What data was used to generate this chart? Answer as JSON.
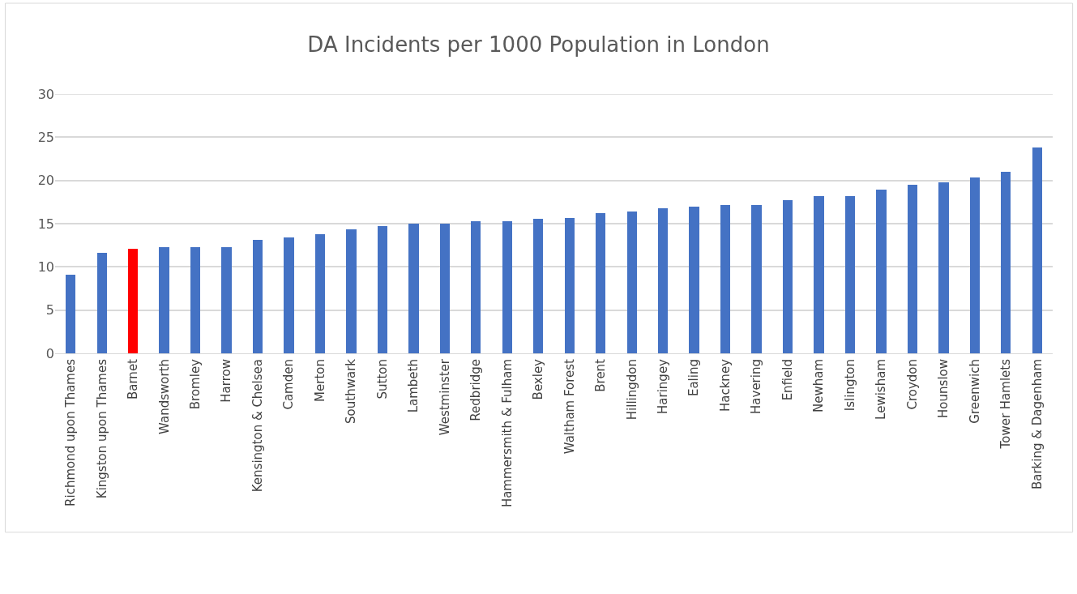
{
  "chart_data": {
    "type": "bar",
    "title": "DA Incidents per 1000 Population in London",
    "categories": [
      "Richmond upon Thames",
      "Kingston upon Thames",
      "Barnet",
      "Wandsworth",
      "Bromley",
      "Harrow",
      "Kensington & Chelsea",
      "Camden",
      "Merton",
      "Southwark",
      "Sutton",
      "Lambeth",
      "Westminster",
      "Redbridge",
      "Hammersmith & Fulham",
      "Bexley",
      "Waltham Forest",
      "Brent",
      "Hillingdon",
      "Haringey",
      "Ealing",
      "Hackney",
      "Havering",
      "Enfield",
      "Newham",
      "Islington",
      "Lewisham",
      "Croydon",
      "Hounslow",
      "Greenwich",
      "Tower Hamlets",
      "Barking & Dagenham"
    ],
    "values": [
      9.1,
      11.6,
      12.1,
      12.3,
      12.3,
      12.3,
      13.1,
      13.4,
      13.8,
      14.3,
      14.7,
      15.0,
      15.0,
      15.3,
      15.3,
      15.6,
      15.7,
      16.2,
      16.4,
      16.8,
      17.0,
      17.2,
      17.2,
      17.7,
      18.2,
      18.2,
      18.9,
      19.5,
      19.8,
      20.3,
      21.0,
      23.8
    ],
    "colors": [
      "#4472c4",
      "#4472c4",
      "#ff0000",
      "#4472c4",
      "#4472c4",
      "#4472c4",
      "#4472c4",
      "#4472c4",
      "#4472c4",
      "#4472c4",
      "#4472c4",
      "#4472c4",
      "#4472c4",
      "#4472c4",
      "#4472c4",
      "#4472c4",
      "#4472c4",
      "#4472c4",
      "#4472c4",
      "#4472c4",
      "#4472c4",
      "#4472c4",
      "#4472c4",
      "#4472c4",
      "#4472c4",
      "#4472c4",
      "#4472c4",
      "#4472c4",
      "#4472c4",
      "#4472c4",
      "#4472c4",
      "#4472c4"
    ],
    "ylim": [
      0,
      30
    ],
    "yticks": [
      0,
      5,
      10,
      15,
      20,
      25,
      30
    ],
    "grid": "y"
  }
}
